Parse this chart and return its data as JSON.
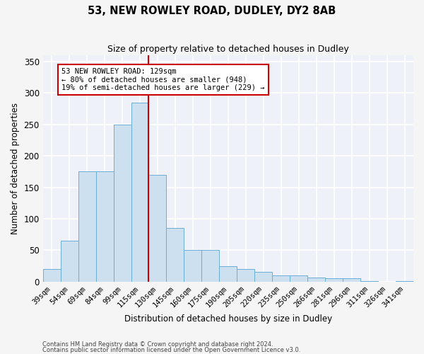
{
  "title": "53, NEW ROWLEY ROAD, DUDLEY, DY2 8AB",
  "subtitle": "Size of property relative to detached houses in Dudley",
  "xlabel": "Distribution of detached houses by size in Dudley",
  "ylabel": "Number of detached properties",
  "bar_color": "#cce0f0",
  "bar_edge_color": "#6aaed6",
  "background_color": "#eef2f8",
  "grid_color": "#ffffff",
  "categories": [
    "39sqm",
    "54sqm",
    "69sqm",
    "84sqm",
    "99sqm",
    "115sqm",
    "130sqm",
    "145sqm",
    "160sqm",
    "175sqm",
    "190sqm",
    "205sqm",
    "220sqm",
    "235sqm",
    "250sqm",
    "266sqm",
    "281sqm",
    "296sqm",
    "311sqm",
    "326sqm",
    "341sqm"
  ],
  "values": [
    20,
    65,
    175,
    175,
    250,
    285,
    170,
    85,
    50,
    50,
    25,
    20,
    15,
    10,
    10,
    7,
    5,
    5,
    1,
    0,
    1
  ],
  "ylim": [
    0,
    360
  ],
  "yticks": [
    0,
    50,
    100,
    150,
    200,
    250,
    300,
    350
  ],
  "property_line_x": 6.0,
  "annotation_text": "53 NEW ROWLEY ROAD: 129sqm\n← 80% of detached houses are smaller (948)\n19% of semi-detached houses are larger (229) →",
  "annotation_box_color": "#ffffff",
  "annotation_border_color": "#cc0000",
  "line_color": "#cc0000",
  "footer1": "Contains HM Land Registry data © Crown copyright and database right 2024.",
  "footer2": "Contains public sector information licensed under the Open Government Licence v3.0."
}
